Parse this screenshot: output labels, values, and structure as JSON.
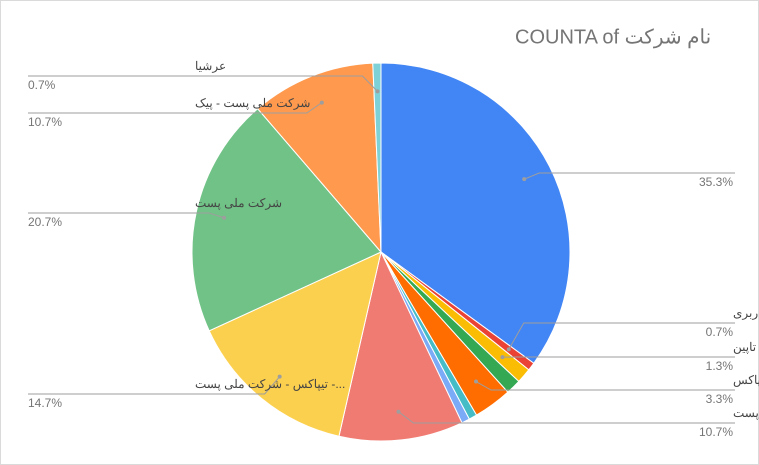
{
  "chart_data": {
    "type": "pie",
    "title": "COUNTA of نام شرکت",
    "categories": [
      null,
      "باربری",
      "تاپین",
      null,
      "تیپاکس",
      null,
      null,
      "تیپاکس - شرکت ملی پست",
      "...- تیپاکس - شرکت ملی پست",
      "شرکت ملی پست",
      "شرکت ملی پست - پیک",
      "عرشیا"
    ],
    "values": [
      35.3,
      0.7,
      1.3,
      1.3,
      3.3,
      0.7,
      0.7,
      10.7,
      14.7,
      20.7,
      10.7,
      0.7
    ],
    "value_labels": [
      "35.3%",
      "0.7%",
      "1.3%",
      null,
      "3.3%",
      null,
      null,
      "10.7%",
      "14.7%",
      "20.7%",
      "10.7%",
      "0.7%"
    ],
    "colors": [
      "#4285f4",
      "#ea4335",
      "#fbbc04",
      "#34a853",
      "#ff6d01",
      "#46bdc6",
      "#7baaf7",
      "#f07b72",
      "#fcd04f",
      "#71c287",
      "#ff994d",
      "#7ed1d7"
    ]
  }
}
